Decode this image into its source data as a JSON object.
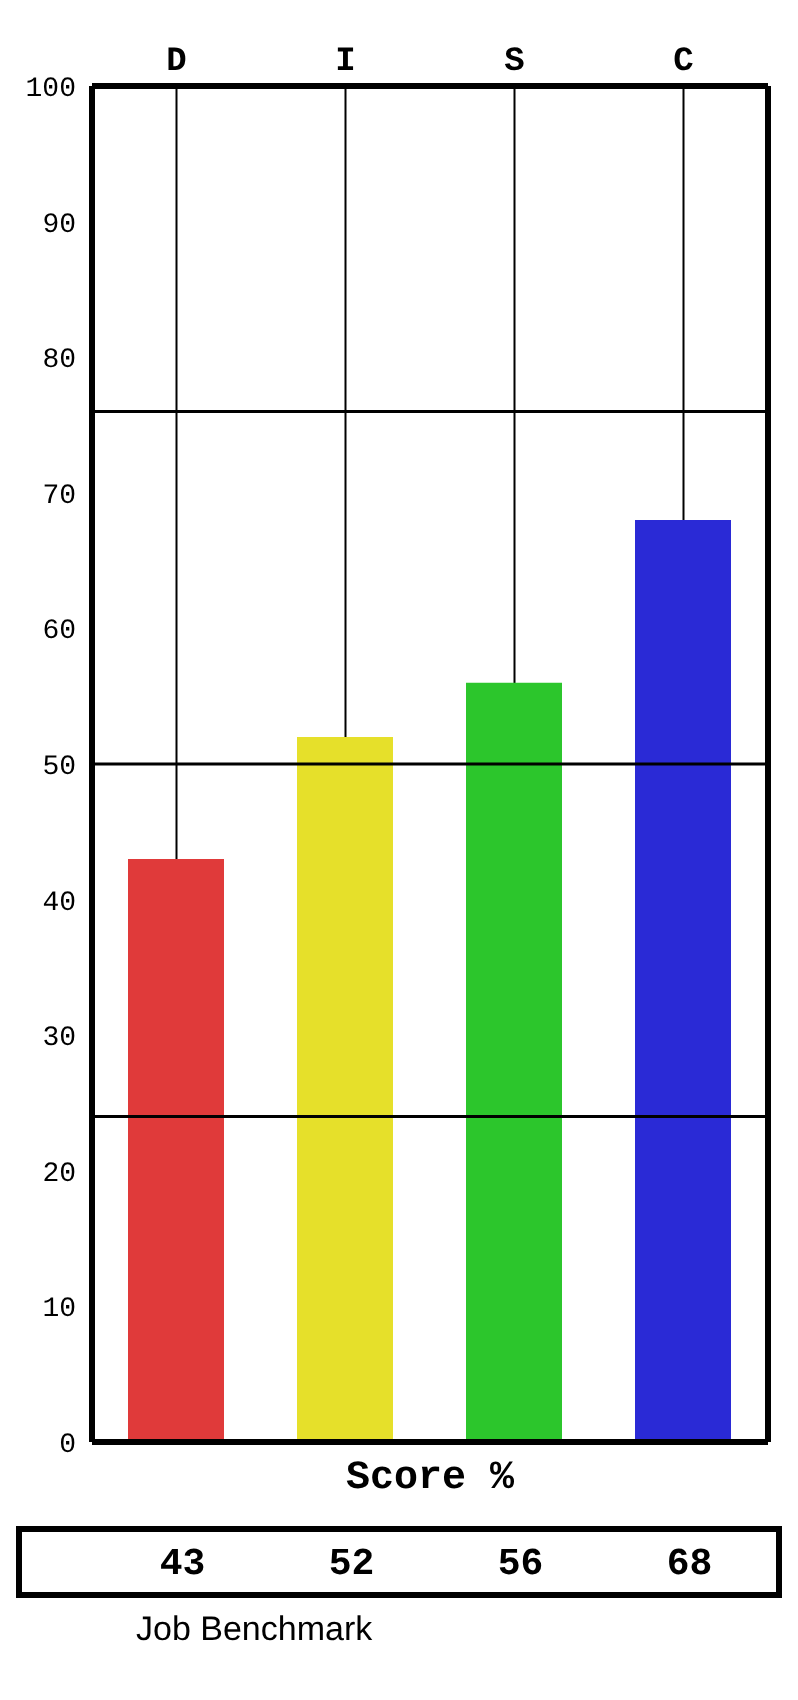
{
  "chart_data": {
    "type": "bar",
    "categories": [
      "D",
      "I",
      "S",
      "C"
    ],
    "values": [
      43,
      52,
      56,
      68
    ],
    "colors": [
      "#e03a3a",
      "#e6e02a",
      "#2cc62c",
      "#2a2ad6"
    ],
    "ylim": [
      0,
      100
    ],
    "yticks": [
      0,
      10,
      20,
      30,
      40,
      50,
      60,
      70,
      80,
      90,
      100
    ],
    "grid": "x",
    "ref_lines": [
      {
        "axis": "y",
        "value": 24,
        "color": "#000000"
      },
      {
        "axis": "y",
        "value": 50,
        "color": "#000000"
      },
      {
        "axis": "y",
        "value": 76,
        "color": "#000000"
      }
    ],
    "xlabel": "Score %",
    "data_labels": true,
    "annotations": [
      "Job Benchmark"
    ]
  }
}
